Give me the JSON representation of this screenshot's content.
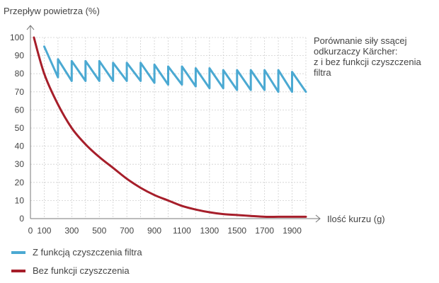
{
  "chart_data": {
    "type": "line",
    "title": "Porównanie siły ssącej odkurzaczy Kärcher: z i bez funkcji czyszczenia filtra",
    "ylabel": "Przepływ powietrza (%)",
    "xlabel": "Ilość kurzu (g)",
    "xlim": [
      0,
      2000
    ],
    "ylim": [
      0,
      100
    ],
    "grid": true,
    "x_ticks": [
      0,
      100,
      300,
      500,
      700,
      900,
      1100,
      1300,
      1500,
      1700,
      1900
    ],
    "y_ticks": [
      0,
      10,
      20,
      30,
      40,
      50,
      60,
      70,
      80,
      90,
      100
    ],
    "legend_position": "bottom-left",
    "series": [
      {
        "name": "Z funkcją czyszczenia filtra",
        "color": "#4ba9d2",
        "x": [
          100,
          200,
          200,
          300,
          300,
          400,
          400,
          500,
          500,
          600,
          600,
          700,
          700,
          800,
          800,
          900,
          900,
          1000,
          1000,
          1100,
          1100,
          1200,
          1200,
          1300,
          1300,
          1400,
          1400,
          1500,
          1500,
          1600,
          1600,
          1700,
          1700,
          1800,
          1800,
          1900,
          1900,
          2000
        ],
        "y": [
          95,
          78,
          88,
          76,
          87,
          76,
          87,
          76,
          87,
          76,
          86,
          76,
          86,
          76,
          86,
          75,
          85,
          74,
          84,
          74,
          84,
          73,
          83,
          72,
          83,
          72,
          82,
          71,
          82,
          71,
          82,
          71,
          82,
          70,
          82,
          70,
          81,
          70
        ]
      },
      {
        "name": "Bez funkcji czyszczenia",
        "color": "#a61e2a",
        "x": [
          25,
          100,
          200,
          300,
          400,
          500,
          600,
          700,
          800,
          900,
          1000,
          1100,
          1200,
          1300,
          1400,
          1500,
          1600,
          1700,
          1800,
          1900,
          2000
        ],
        "y": [
          100,
          80,
          63,
          50,
          41,
          34,
          28,
          22,
          17,
          13,
          10,
          7,
          5,
          3.5,
          2.5,
          2,
          1.5,
          1,
          1,
          1,
          1
        ]
      }
    ],
    "annotation": [
      "Porównanie siły ssącej",
      "odkurzaczy Kärcher:",
      "z i bez funkcji czyszczenia",
      "filtra"
    ]
  }
}
